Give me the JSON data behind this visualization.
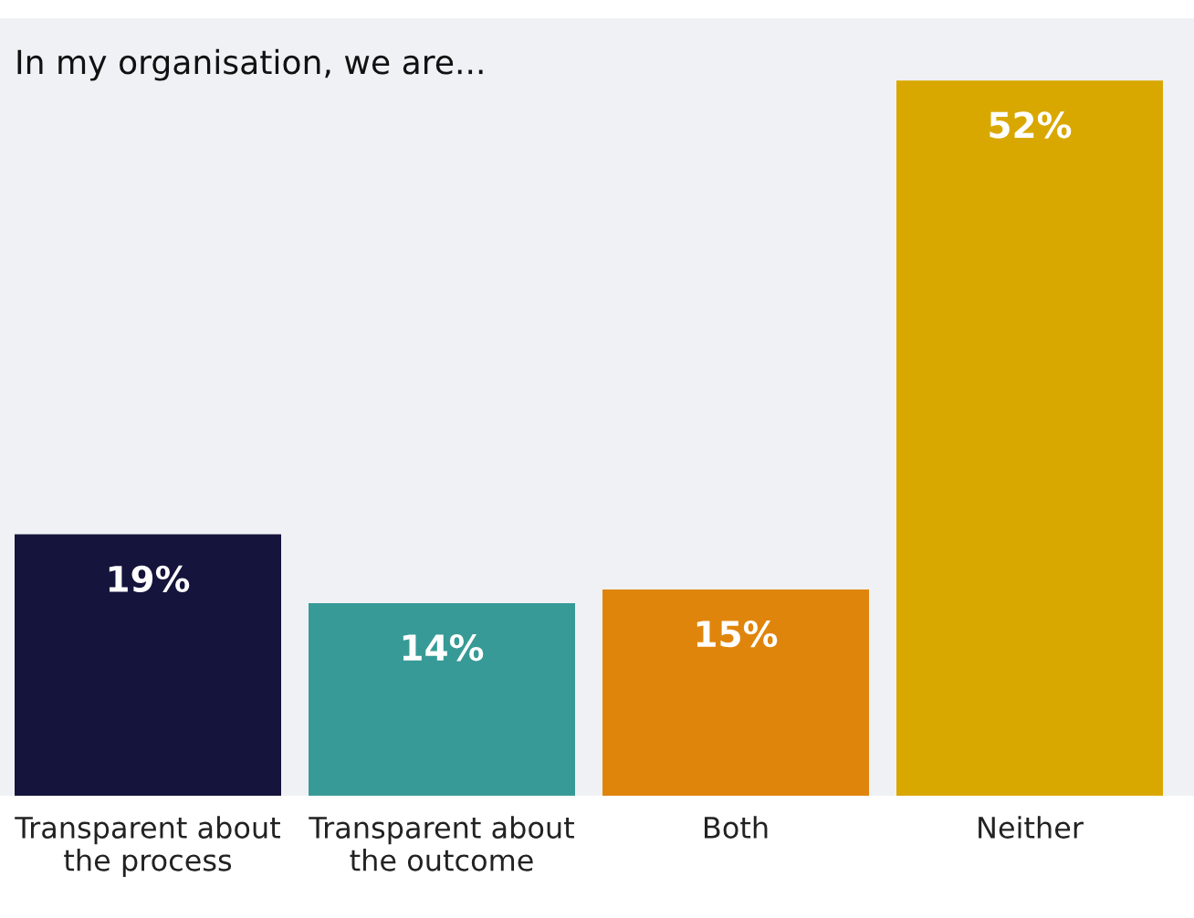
{
  "chart_data": {
    "type": "bar",
    "title": "In my organisation, we are...",
    "categories": [
      "Transparent about\nthe process",
      "Transparent about\nthe outcome",
      "Both",
      "Neither"
    ],
    "values": [
      19,
      14,
      15,
      52
    ],
    "colors": [
      "#14143c",
      "#379a96",
      "#e0850c",
      "#d9a800"
    ],
    "value_labels": [
      "19%",
      "14%",
      "15%",
      "52%"
    ],
    "grid": false,
    "legend": false
  }
}
